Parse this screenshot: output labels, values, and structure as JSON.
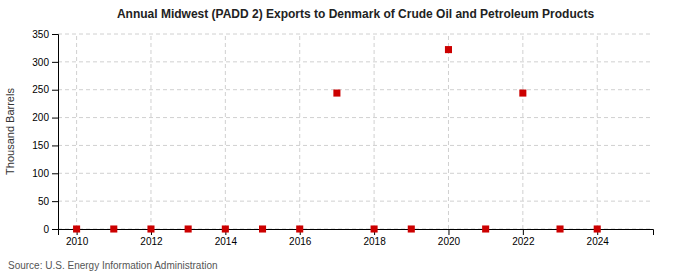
{
  "chart_data": {
    "type": "scatter",
    "title": "Annual Midwest (PADD 2) Exports to Denmark of Crude Oil and Petroleum Products",
    "ylabel": "Thousand Barrels",
    "annotations": [
      "Source: U.S. Energy Information Administration"
    ],
    "x": [
      2010,
      2011,
      2012,
      2013,
      2014,
      2015,
      2016,
      2017,
      2018,
      2019,
      2020,
      2021,
      2022,
      2023,
      2024
    ],
    "values": [
      0,
      0,
      0,
      0,
      0,
      0,
      0,
      244,
      0,
      0,
      322,
      0,
      244,
      0,
      0
    ],
    "color": "#cc0000",
    "marker": "square",
    "xlim": [
      2009.5,
      2025.5
    ],
    "ylim": [
      0,
      350
    ],
    "xticks": [
      2010,
      2012,
      2014,
      2016,
      2018,
      2020,
      2022,
      2024
    ],
    "yticks": [
      0,
      50,
      100,
      150,
      200,
      250,
      300,
      350
    ],
    "grid": true
  }
}
